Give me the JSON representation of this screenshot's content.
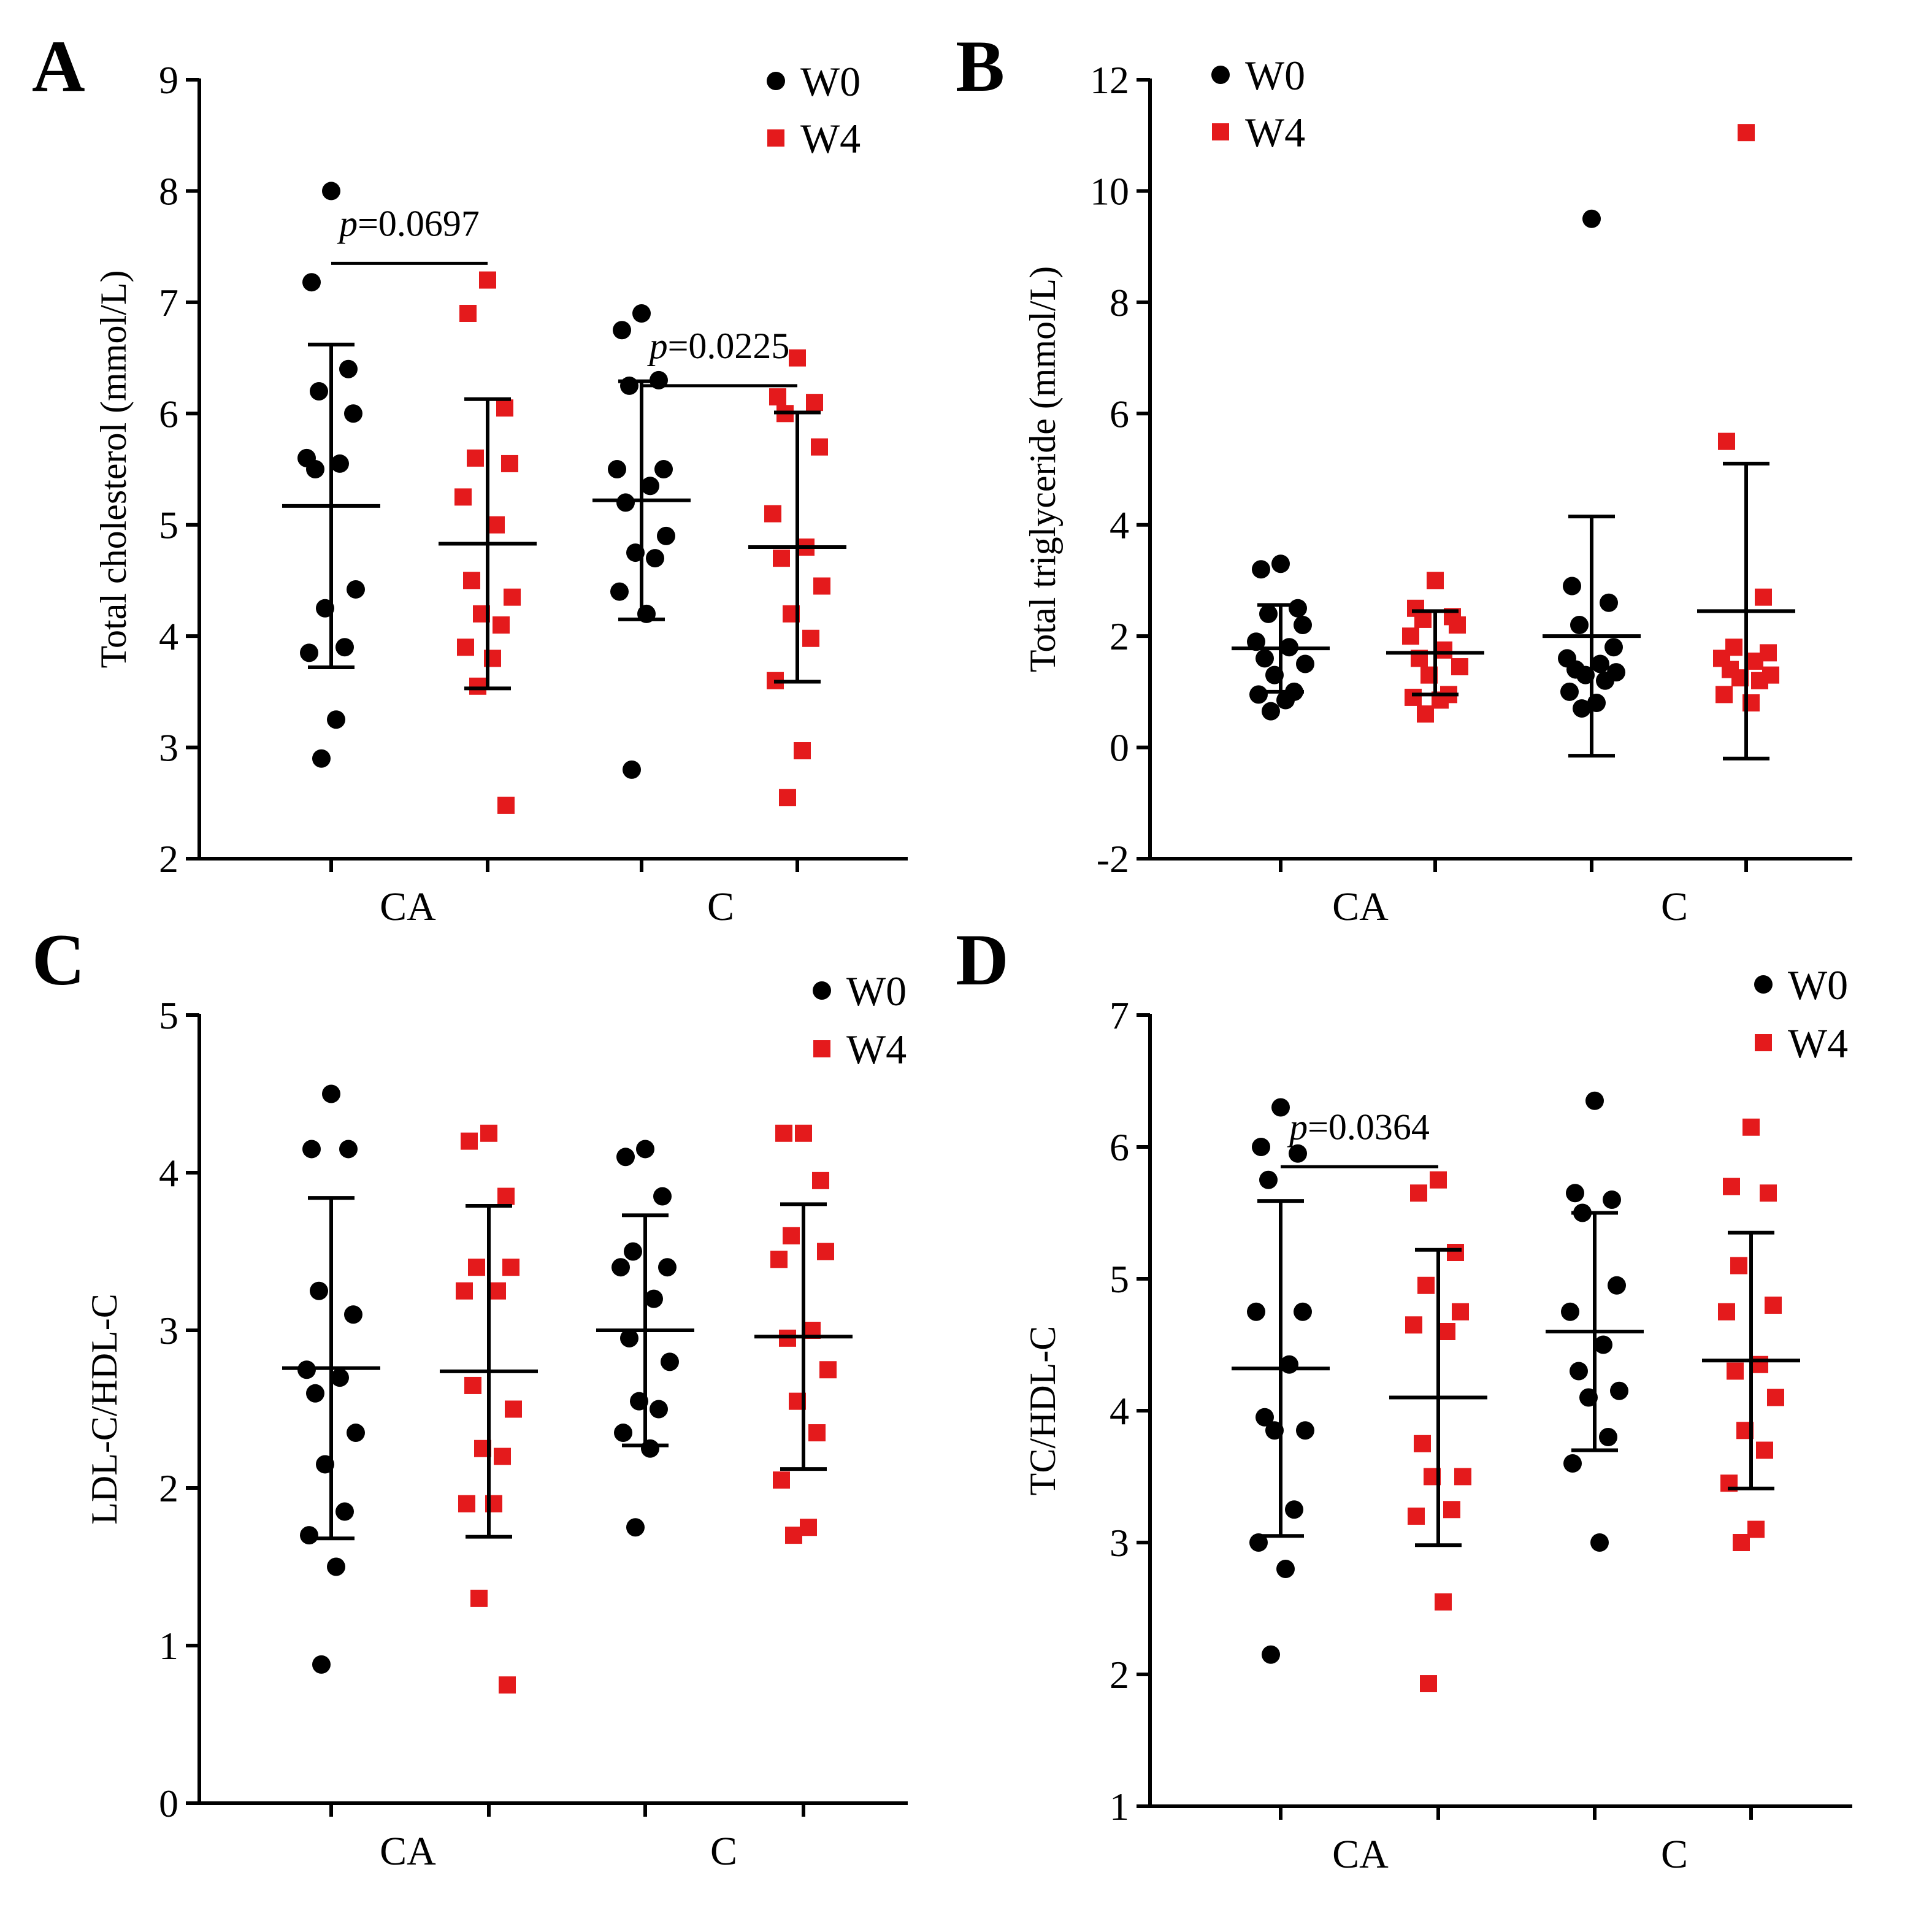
{
  "colors": {
    "W0": "#000000",
    "W4": "#e41a1c",
    "axis": "#000000"
  },
  "chart_data": [
    {
      "panel": "A",
      "type": "scatter",
      "ylabel": "Total cholesterol (mmol/L)",
      "ylim": [
        2,
        9
      ],
      "yticks": [
        "2",
        "3",
        "4",
        "5",
        "6",
        "7",
        "8",
        "9"
      ],
      "groups": [
        "CA",
        "C"
      ],
      "legend": {
        "position": "top-right",
        "entries": [
          "W0",
          "W4"
        ]
      },
      "series": [
        {
          "name": "CA W0",
          "group": "CA",
          "time": "W0",
          "mean": 5.17,
          "sd": 1.45,
          "values": [
            8.0,
            7.18,
            6.4,
            6.2,
            6.0,
            5.6,
            5.55,
            5.5,
            4.42,
            4.25,
            3.9,
            3.85,
            3.25,
            2.9
          ]
        },
        {
          "name": "CA W4",
          "group": "CA",
          "time": "W4",
          "mean": 4.83,
          "sd": 1.3,
          "values": [
            7.2,
            6.9,
            6.05,
            5.6,
            5.55,
            5.25,
            5.0,
            4.5,
            4.35,
            4.2,
            4.1,
            3.9,
            3.8,
            3.55,
            2.48
          ]
        },
        {
          "name": "C W0",
          "group": "C",
          "time": "W0",
          "mean": 5.22,
          "sd": 1.07,
          "values": [
            6.9,
            6.75,
            6.3,
            6.25,
            5.5,
            5.5,
            5.35,
            5.2,
            4.9,
            4.75,
            4.7,
            4.4,
            4.2,
            2.8
          ]
        },
        {
          "name": "C W4",
          "group": "C",
          "time": "W4",
          "mean": 4.8,
          "sd": 1.21,
          "values": [
            6.5,
            6.15,
            6.1,
            6.0,
            5.7,
            5.1,
            4.8,
            4.7,
            4.45,
            4.2,
            3.98,
            3.6,
            2.97,
            2.55
          ]
        }
      ],
      "comparisons": [
        {
          "group": "CA",
          "label": "p",
          "value": "=0.0697",
          "y": 7.35
        },
        {
          "group": "C",
          "label": "p",
          "value": "=0.0225",
          "y": 6.25
        }
      ]
    },
    {
      "panel": "B",
      "type": "scatter",
      "ylabel": "Total triglyceride (mmol/L)",
      "ylim": [
        -2,
        12
      ],
      "yticks": [
        "-2",
        "0",
        "2",
        "4",
        "6",
        "8",
        "10",
        "12"
      ],
      "groups": [
        "CA",
        "C"
      ],
      "legend": {
        "position": "top-left",
        "entries": [
          "W0",
          "W4"
        ]
      },
      "series": [
        {
          "name": "CA W0",
          "group": "CA",
          "time": "W0",
          "mean": 1.78,
          "sd": 0.78,
          "values": [
            3.3,
            3.2,
            2.5,
            2.4,
            2.2,
            1.9,
            1.8,
            1.6,
            1.5,
            1.3,
            1.0,
            0.95,
            0.85,
            0.65
          ]
        },
        {
          "name": "CA W4",
          "group": "CA",
          "time": "W4",
          "mean": 1.7,
          "sd": 0.75,
          "values": [
            3.0,
            2.5,
            2.35,
            2.3,
            2.2,
            2.0,
            1.75,
            1.6,
            1.45,
            1.3,
            0.95,
            0.9,
            0.85,
            0.6
          ]
        },
        {
          "name": "C W0",
          "group": "C",
          "time": "W0",
          "mean": 2.0,
          "sd": 2.15,
          "values": [
            9.5,
            2.9,
            2.6,
            2.2,
            1.8,
            1.6,
            1.5,
            1.4,
            1.35,
            1.3,
            1.2,
            1.0,
            0.8,
            0.7
          ]
        },
        {
          "name": "C W4",
          "group": "C",
          "time": "W4",
          "mean": 2.45,
          "sd": 2.65,
          "values": [
            11.05,
            5.5,
            2.7,
            1.8,
            1.7,
            1.6,
            1.55,
            1.4,
            1.3,
            1.25,
            1.2,
            0.95,
            0.8
          ]
        }
      ],
      "comparisons": []
    },
    {
      "panel": "C",
      "type": "scatter",
      "ylabel": "LDL-C/HDL-C",
      "ylim": [
        0,
        5
      ],
      "yticks": [
        "0",
        "1",
        "2",
        "3",
        "4",
        "5"
      ],
      "groups": [
        "CA",
        "C"
      ],
      "legend": {
        "position": "top-right",
        "entries": [
          "W0",
          "W4"
        ]
      },
      "series": [
        {
          "name": "CA W0",
          "group": "CA",
          "time": "W0",
          "mean": 2.76,
          "sd": 1.08,
          "values": [
            4.5,
            4.15,
            4.15,
            3.25,
            3.1,
            2.75,
            2.7,
            2.6,
            2.35,
            2.15,
            1.85,
            1.7,
            1.5,
            0.88
          ]
        },
        {
          "name": "CA W4",
          "group": "CA",
          "time": "W4",
          "mean": 2.74,
          "sd": 1.05,
          "values": [
            4.25,
            4.2,
            3.85,
            3.4,
            3.4,
            3.25,
            3.25,
            2.65,
            2.5,
            2.25,
            2.2,
            1.9,
            1.9,
            1.3,
            0.75
          ]
        },
        {
          "name": "C W0",
          "group": "C",
          "time": "W0",
          "mean": 3.0,
          "sd": 0.73,
          "values": [
            4.15,
            4.1,
            3.85,
            3.5,
            3.4,
            3.4,
            3.2,
            2.95,
            2.8,
            2.55,
            2.5,
            2.35,
            2.25,
            1.75
          ]
        },
        {
          "name": "C W4",
          "group": "C",
          "time": "W4",
          "mean": 2.96,
          "sd": 0.84,
          "values": [
            4.25,
            4.25,
            3.95,
            3.6,
            3.5,
            3.45,
            3.0,
            2.95,
            2.75,
            2.55,
            2.35,
            2.05,
            1.75,
            1.7
          ]
        }
      ],
      "comparisons": []
    },
    {
      "panel": "D",
      "type": "scatter",
      "ylabel": "TC/HDL-C",
      "ylim": [
        1,
        7
      ],
      "yticks": [
        "1",
        "2",
        "3",
        "4",
        "5",
        "6",
        "7"
      ],
      "groups": [
        "CA",
        "C"
      ],
      "legend": {
        "position": "top-right",
        "entries": [
          "W0",
          "W4"
        ]
      },
      "series": [
        {
          "name": "CA W0",
          "group": "CA",
          "time": "W0",
          "mean": 4.32,
          "sd": 1.27,
          "values": [
            6.3,
            6.0,
            5.95,
            5.75,
            4.75,
            4.75,
            4.35,
            3.95,
            3.85,
            3.85,
            3.25,
            3.0,
            2.8,
            2.15
          ]
        },
        {
          "name": "CA W4",
          "group": "CA",
          "time": "W4",
          "mean": 4.1,
          "sd": 1.12,
          "values": [
            5.75,
            5.65,
            5.2,
            4.95,
            4.75,
            4.65,
            4.6,
            3.75,
            3.5,
            3.5,
            3.25,
            3.2,
            2.55,
            1.93
          ]
        },
        {
          "name": "C W0",
          "group": "C",
          "time": "W0",
          "mean": 4.6,
          "sd": 0.9,
          "values": [
            6.35,
            5.65,
            5.6,
            5.5,
            4.95,
            4.75,
            4.5,
            4.3,
            4.15,
            4.1,
            3.8,
            3.6,
            3.0
          ]
        },
        {
          "name": "C W4",
          "group": "C",
          "time": "W4",
          "mean": 4.38,
          "sd": 0.97,
          "values": [
            6.15,
            5.7,
            5.65,
            5.1,
            4.8,
            4.75,
            4.35,
            4.3,
            4.1,
            3.85,
            3.7,
            3.45,
            3.1,
            3.0
          ]
        }
      ],
      "comparisons": [
        {
          "group": "CA",
          "label": "p",
          "value": "=0.0364",
          "y": 5.85
        }
      ]
    }
  ]
}
